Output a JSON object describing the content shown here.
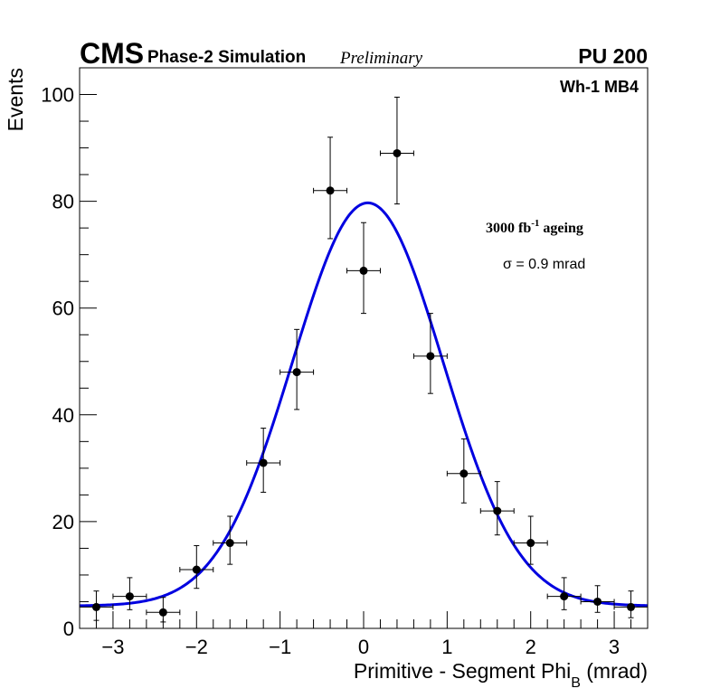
{
  "chart_data": {
    "type": "scatter",
    "title": "",
    "header": {
      "experiment": "CMS",
      "subtitle": "Phase-2 Simulation",
      "status": "Preliminary",
      "pileup": "PU 200"
    },
    "annotations": {
      "station": "Wh-1 MB4",
      "ageing_prefix": "3000 fb",
      "ageing_exp": "-1",
      "ageing_suffix": " ageing",
      "sigma_symbol": "σ",
      "sigma_text": " = 0.9 mrad"
    },
    "xlabel_main": "Primitive - Segment Phi",
    "xlabel_sub": "B",
    "xlabel_unit": " (mrad)",
    "ylabel": "Events",
    "xlim": [
      -3.4,
      3.4
    ],
    "ylim": [
      0,
      105
    ],
    "x_ticks": [
      -3,
      -2,
      -1,
      0,
      1,
      2,
      3
    ],
    "x_tick_labels": [
      "−3",
      "−2",
      "−1",
      "0",
      "1",
      "2",
      "3"
    ],
    "y_ticks": [
      0,
      20,
      40,
      60,
      80,
      100
    ],
    "y_tick_labels": [
      "0",
      "20",
      "40",
      "60",
      "80",
      "100"
    ],
    "bin_half_width": 0.2,
    "series": [
      {
        "name": "Simulation",
        "x": [
          -3.2,
          -2.8,
          -2.4,
          -2.0,
          -1.6,
          -1.2,
          -0.8,
          -0.4,
          0.0,
          0.4,
          0.8,
          1.2,
          1.6,
          2.0,
          2.4,
          2.8,
          3.2
        ],
        "y": [
          4,
          6,
          3,
          11,
          16,
          31,
          48,
          82,
          67,
          89,
          51,
          29,
          22,
          16,
          6,
          5,
          4
        ],
        "yerr_low": [
          2.5,
          2.5,
          1.8,
          3.5,
          4.0,
          5.5,
          7.0,
          9.0,
          8.0,
          9.5,
          7.0,
          5.5,
          4.5,
          4.0,
          2.5,
          2.0,
          2.0
        ],
        "yerr_high": [
          3.0,
          3.5,
          2.8,
          4.5,
          5.0,
          6.5,
          8.0,
          10.0,
          9.0,
          10.5,
          8.0,
          6.5,
          5.5,
          5.0,
          3.5,
          3.0,
          3.0
        ]
      }
    ],
    "fit": {
      "name": "Gaussian fit",
      "function": "gaussian+constant",
      "amplitude": 75.5,
      "mean": 0.05,
      "sigma": 0.9,
      "constant": 4.2,
      "color": "#0000e0"
    },
    "colors": {
      "points": "#000000",
      "fit": "#0000e0",
      "axis": "#000000"
    }
  }
}
